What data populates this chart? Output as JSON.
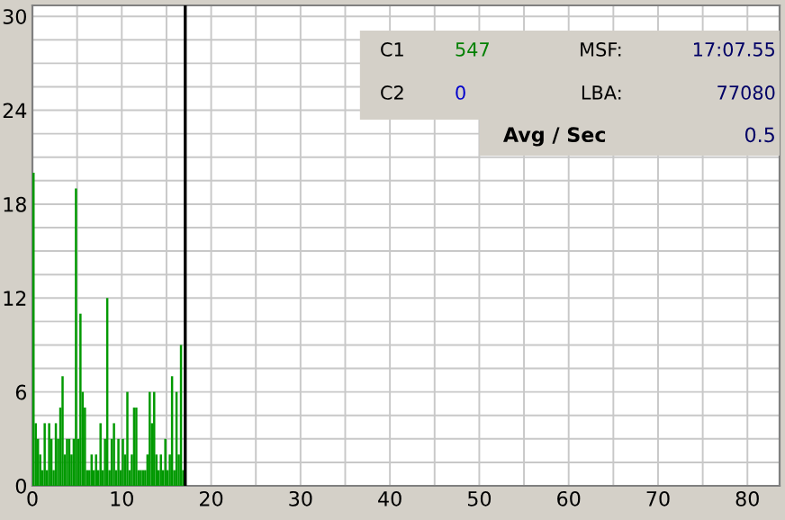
{
  "chart_data": {
    "type": "bar",
    "x": [
      0,
      0.25,
      0.5,
      0.75,
      1,
      1.25,
      1.5,
      1.75,
      2,
      2.25,
      2.5,
      2.75,
      3,
      3.25,
      3.5,
      3.75,
      4,
      4.25,
      4.5,
      4.75,
      5,
      5.25,
      5.5,
      5.75,
      6,
      6.25,
      6.5,
      6.75,
      7,
      7.25,
      7.5,
      7.75,
      8,
      8.25,
      8.5,
      8.75,
      9,
      9.25,
      9.5,
      9.75,
      10,
      10.25,
      10.5,
      10.75,
      11,
      11.25,
      11.5,
      11.75,
      12,
      12.25,
      12.5,
      12.75,
      13,
      13.25,
      13.5,
      13.75,
      14,
      14.25,
      14.5,
      14.75,
      15,
      15.25,
      15.5,
      15.75,
      16,
      16.25,
      16.5,
      16.75
    ],
    "series": [
      {
        "color": "#009900",
        "values": [
          20,
          4,
          3,
          2,
          1,
          4,
          1,
          4,
          3,
          1,
          4,
          3,
          5,
          7,
          2,
          3,
          3,
          2,
          3,
          19,
          3,
          11,
          6,
          5,
          1,
          1,
          2,
          1,
          2,
          1,
          4,
          1,
          3,
          12,
          1,
          3,
          4,
          1,
          3,
          1,
          3,
          2,
          6,
          1,
          2,
          5,
          5,
          1,
          1,
          1,
          1,
          2,
          6,
          4,
          6,
          2,
          1,
          2,
          1,
          3,
          1,
          2,
          7,
          1,
          6,
          2,
          9,
          1
        ]
      }
    ],
    "xlim": [
      0,
      83.6
    ],
    "ylim": [
      0,
      30.7
    ],
    "xticks": [
      0,
      {
        "value": 5,
        "label": null
      },
      10,
      {
        "value": 15,
        "label": null
      },
      20,
      {
        "value": 25,
        "label": null
      },
      30,
      {
        "value": 35,
        "label": null
      },
      40,
      {
        "value": 45,
        "label": null
      },
      50,
      {
        "value": 55,
        "label": null
      },
      60,
      {
        "value": 65,
        "label": null
      },
      70,
      {
        "value": 75,
        "label": null
      },
      80
    ],
    "yticks": [
      0,
      {
        "value": 1.5,
        "label": null
      },
      {
        "value": 3,
        "label": null
      },
      {
        "value": 4.5,
        "label": null
      },
      6,
      {
        "value": 7.5,
        "label": null
      },
      {
        "value": 9,
        "label": null
      },
      {
        "value": 10.5,
        "label": null
      },
      12,
      {
        "value": 13.5,
        "label": null
      },
      {
        "value": 15,
        "label": null
      },
      {
        "value": 16.5,
        "label": null
      },
      18,
      {
        "value": 19.5,
        "label": null
      },
      {
        "value": 21,
        "label": null
      },
      {
        "value": 22.5,
        "label": null
      },
      24,
      {
        "value": 25.5,
        "label": null
      },
      {
        "value": 27,
        "label": null
      },
      {
        "value": 28.5,
        "label": null
      },
      30
    ],
    "grid": true,
    "ref_lines": [
      {
        "axis": "x",
        "value": 17.1,
        "color": "#000000"
      }
    ],
    "annotations": [
      "C1",
      "547",
      "MSF:",
      "17:07.55",
      "C2",
      "0",
      "LBA:",
      "77080",
      "Avg / Sec",
      "0.5"
    ]
  }
}
